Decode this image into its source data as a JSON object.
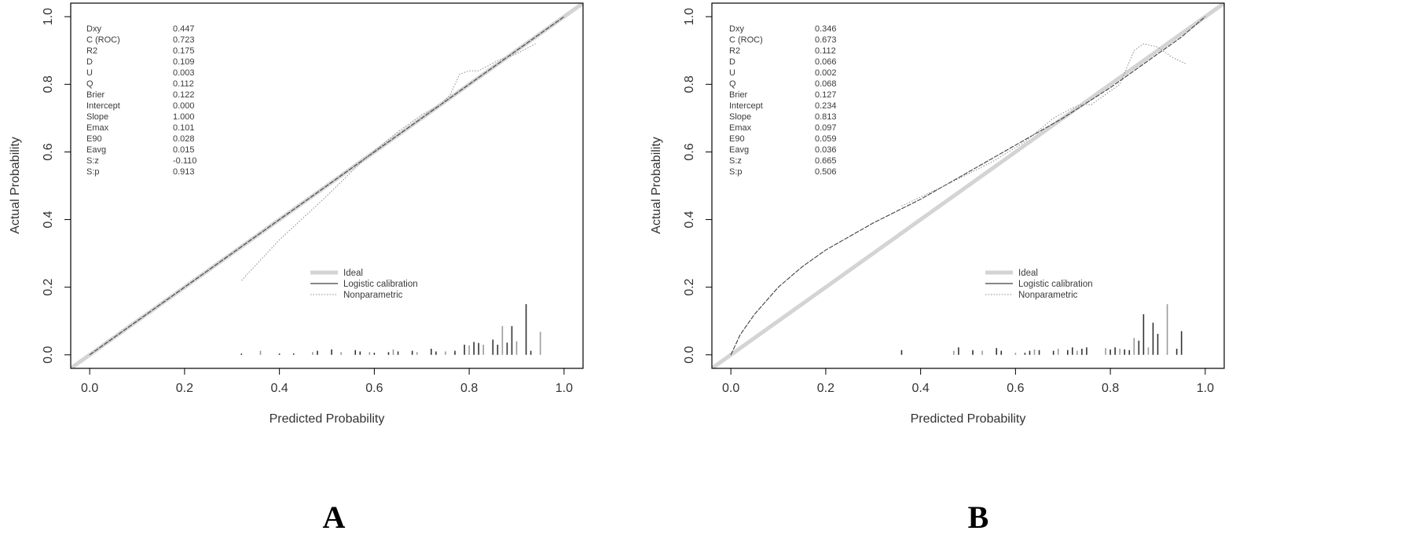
{
  "colors": {
    "ideal": "#d4d4d4",
    "logistic": "#404040",
    "nonparametric": "#8a8a8a",
    "frame": "#000000",
    "text": "#333333"
  },
  "chart_data": [
    {
      "type": "line",
      "panel_label": "A",
      "xlabel": "Predicted Probability",
      "ylabel": "Actual Probability",
      "xlim": [
        -0.04,
        1.04
      ],
      "ylim": [
        -0.04,
        1.04
      ],
      "xticks": [
        "0.0",
        "0.2",
        "0.4",
        "0.6",
        "0.8",
        "1.0"
      ],
      "yticks": [
        "0.0",
        "0.2",
        "0.4",
        "0.6",
        "0.8",
        "1.0"
      ],
      "legend": {
        "position": "bottom-right",
        "entries": [
          "Ideal",
          "Logistic calibration",
          "Nonparametric"
        ]
      },
      "stats": [
        {
          "name": "Dxy",
          "value": "0.447"
        },
        {
          "name": "C (ROC)",
          "value": "0.723"
        },
        {
          "name": "R2",
          "value": "0.175"
        },
        {
          "name": "D",
          "value": "0.109"
        },
        {
          "name": "U",
          "value": "0.003"
        },
        {
          "name": "Q",
          "value": "0.112"
        },
        {
          "name": "Brier",
          "value": "0.122"
        },
        {
          "name": "Intercept",
          "value": "0.000"
        },
        {
          "name": "Slope",
          "value": "1.000"
        },
        {
          "name": "Emax",
          "value": "0.101"
        },
        {
          "name": "E90",
          "value": "0.028"
        },
        {
          "name": "Eavg",
          "value": "0.015"
        },
        {
          "name": "S:z",
          "value": "-0.110"
        },
        {
          "name": "S:p",
          "value": "0.913"
        }
      ],
      "series": [
        {
          "name": "Ideal",
          "x": [
            -0.04,
            1.04
          ],
          "y": [
            -0.04,
            1.04
          ]
        },
        {
          "name": "Logistic calibration",
          "x": [
            0.0,
            1.0
          ],
          "y": [
            0.0,
            1.0
          ]
        },
        {
          "name": "Nonparametric",
          "x": [
            0.32,
            0.4,
            0.5,
            0.58,
            0.65,
            0.7,
            0.74,
            0.76,
            0.78,
            0.8,
            0.82,
            0.86,
            0.9,
            0.94
          ],
          "y": [
            0.22,
            0.34,
            0.47,
            0.58,
            0.66,
            0.71,
            0.74,
            0.77,
            0.83,
            0.84,
            0.84,
            0.87,
            0.89,
            0.92
          ]
        }
      ],
      "histogram": {
        "x": [
          0.32,
          0.36,
          0.4,
          0.43,
          0.47,
          0.48,
          0.51,
          0.53,
          0.56,
          0.57,
          0.59,
          0.6,
          0.63,
          0.64,
          0.65,
          0.68,
          0.69,
          0.72,
          0.73,
          0.75,
          0.77,
          0.79,
          0.8,
          0.81,
          0.82,
          0.83,
          0.85,
          0.86,
          0.87,
          0.88,
          0.89,
          0.9,
          0.92,
          0.93,
          0.95
        ],
        "h": [
          0.004,
          0.012,
          0.004,
          0.004,
          0.008,
          0.012,
          0.016,
          0.008,
          0.014,
          0.01,
          0.008,
          0.006,
          0.008,
          0.016,
          0.01,
          0.012,
          0.008,
          0.018,
          0.01,
          0.01,
          0.012,
          0.03,
          0.028,
          0.038,
          0.035,
          0.03,
          0.045,
          0.03,
          0.085,
          0.036,
          0.085,
          0.04,
          0.15,
          0.012,
          0.068
        ]
      }
    },
    {
      "type": "line",
      "panel_label": "B",
      "xlabel": "Predicted Probability",
      "ylabel": "Actual Probability",
      "xlim": [
        -0.04,
        1.04
      ],
      "ylim": [
        -0.04,
        1.04
      ],
      "xticks": [
        "0.0",
        "0.2",
        "0.4",
        "0.6",
        "0.8",
        "1.0"
      ],
      "yticks": [
        "0.0",
        "0.2",
        "0.4",
        "0.6",
        "0.8",
        "1.0"
      ],
      "legend": {
        "position": "bottom-right",
        "entries": [
          "Ideal",
          "Logistic calibration",
          "Nonparametric"
        ]
      },
      "stats": [
        {
          "name": "Dxy",
          "value": "0.346"
        },
        {
          "name": "C (ROC)",
          "value": "0.673"
        },
        {
          "name": "R2",
          "value": "0.112"
        },
        {
          "name": "D",
          "value": "0.066"
        },
        {
          "name": "U",
          "value": "0.002"
        },
        {
          "name": "Q",
          "value": "0.068"
        },
        {
          "name": "Brier",
          "value": "0.127"
        },
        {
          "name": "Intercept",
          "value": "0.234"
        },
        {
          "name": "Slope",
          "value": "0.813"
        },
        {
          "name": "Emax",
          "value": "0.097"
        },
        {
          "name": "E90",
          "value": "0.059"
        },
        {
          "name": "Eavg",
          "value": "0.036"
        },
        {
          "name": "S:z",
          "value": "0.665"
        },
        {
          "name": "S:p",
          "value": "0.506"
        }
      ],
      "series": [
        {
          "name": "Ideal",
          "x": [
            -0.04,
            1.04
          ],
          "y": [
            -0.04,
            1.04
          ]
        },
        {
          "name": "Logistic calibration",
          "x": [
            0.0,
            0.02,
            0.05,
            0.1,
            0.15,
            0.2,
            0.3,
            0.4,
            0.5,
            0.6,
            0.7,
            0.8,
            0.9,
            0.95,
            1.0
          ],
          "y": [
            0.0,
            0.06,
            0.12,
            0.2,
            0.26,
            0.31,
            0.39,
            0.46,
            0.54,
            0.62,
            0.7,
            0.79,
            0.89,
            0.94,
            1.0
          ]
        },
        {
          "name": "Nonparametric",
          "x": [
            0.36,
            0.45,
            0.55,
            0.62,
            0.68,
            0.72,
            0.74,
            0.76,
            0.79,
            0.82,
            0.85,
            0.87,
            0.9,
            0.93,
            0.96
          ],
          "y": [
            0.44,
            0.5,
            0.57,
            0.63,
            0.7,
            0.73,
            0.74,
            0.74,
            0.77,
            0.8,
            0.9,
            0.92,
            0.91,
            0.88,
            0.86
          ]
        }
      ],
      "histogram": {
        "x": [
          0.36,
          0.47,
          0.48,
          0.51,
          0.53,
          0.56,
          0.57,
          0.6,
          0.62,
          0.63,
          0.64,
          0.65,
          0.68,
          0.69,
          0.71,
          0.72,
          0.73,
          0.74,
          0.75,
          0.79,
          0.8,
          0.81,
          0.82,
          0.83,
          0.84,
          0.85,
          0.86,
          0.87,
          0.88,
          0.89,
          0.9,
          0.92,
          0.94,
          0.95
        ],
        "h": [
          0.014,
          0.012,
          0.022,
          0.014,
          0.012,
          0.02,
          0.012,
          0.006,
          0.006,
          0.012,
          0.016,
          0.014,
          0.012,
          0.018,
          0.014,
          0.022,
          0.012,
          0.018,
          0.022,
          0.02,
          0.016,
          0.022,
          0.018,
          0.016,
          0.014,
          0.05,
          0.042,
          0.12,
          0.022,
          0.095,
          0.062,
          0.15,
          0.018,
          0.07
        ]
      }
    }
  ]
}
